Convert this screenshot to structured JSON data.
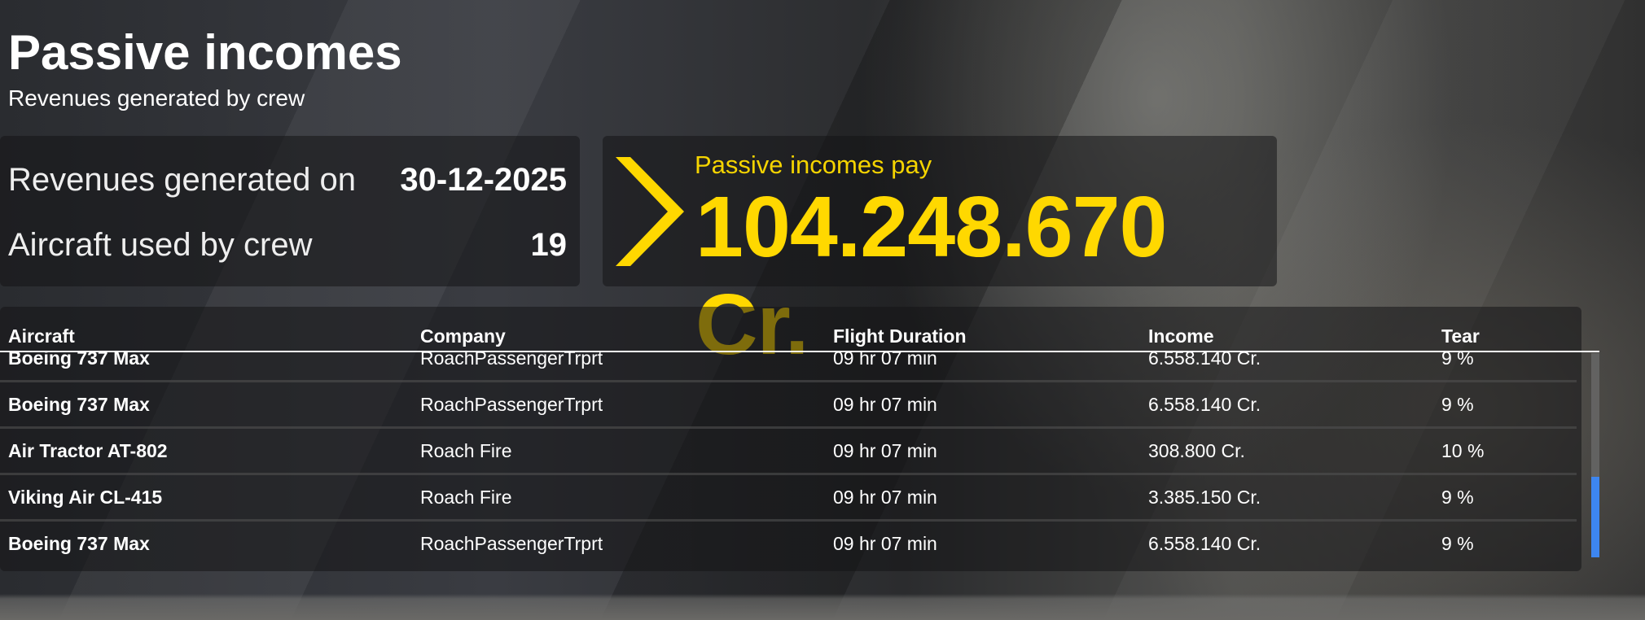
{
  "header": {
    "title": "Passive incomes",
    "subtitle": "Revenues generated by crew"
  },
  "summary": {
    "date_label": "Revenues generated on",
    "date_value": "30-12-2025",
    "aircraft_label": "Aircraft used by crew",
    "aircraft_value": "19"
  },
  "pay": {
    "label": "Passive incomes pay",
    "amount": "104.248.670 Cr.",
    "accent": "#ffd800",
    "icon": "chevron-right-icon"
  },
  "table": {
    "columns": [
      "Aircraft",
      "Company",
      "Flight Duration",
      "Income",
      "Tear"
    ],
    "rows": [
      [
        "Boeing 737 Max",
        "RoachPassengerTrprt",
        "09 hr 07 min",
        "6.558.140 Cr.",
        "9 %"
      ],
      [
        "Boeing 737 Max",
        "RoachPassengerTrprt",
        "09 hr 07 min",
        "6.558.140 Cr.",
        "9 %"
      ],
      [
        "Air Tractor AT-802",
        "Roach Fire",
        "09 hr 07 min",
        "308.800 Cr.",
        "10 %"
      ],
      [
        "Viking Air CL-415",
        "Roach Fire",
        "09 hr 07 min",
        "3.385.150 Cr.",
        "9 %"
      ],
      [
        "Boeing 737 Max",
        "RoachPassengerTrprt",
        "09 hr 07 min",
        "6.558.140 Cr.",
        "9 %"
      ]
    ],
    "scrollbar_color": "#3d86f0"
  }
}
